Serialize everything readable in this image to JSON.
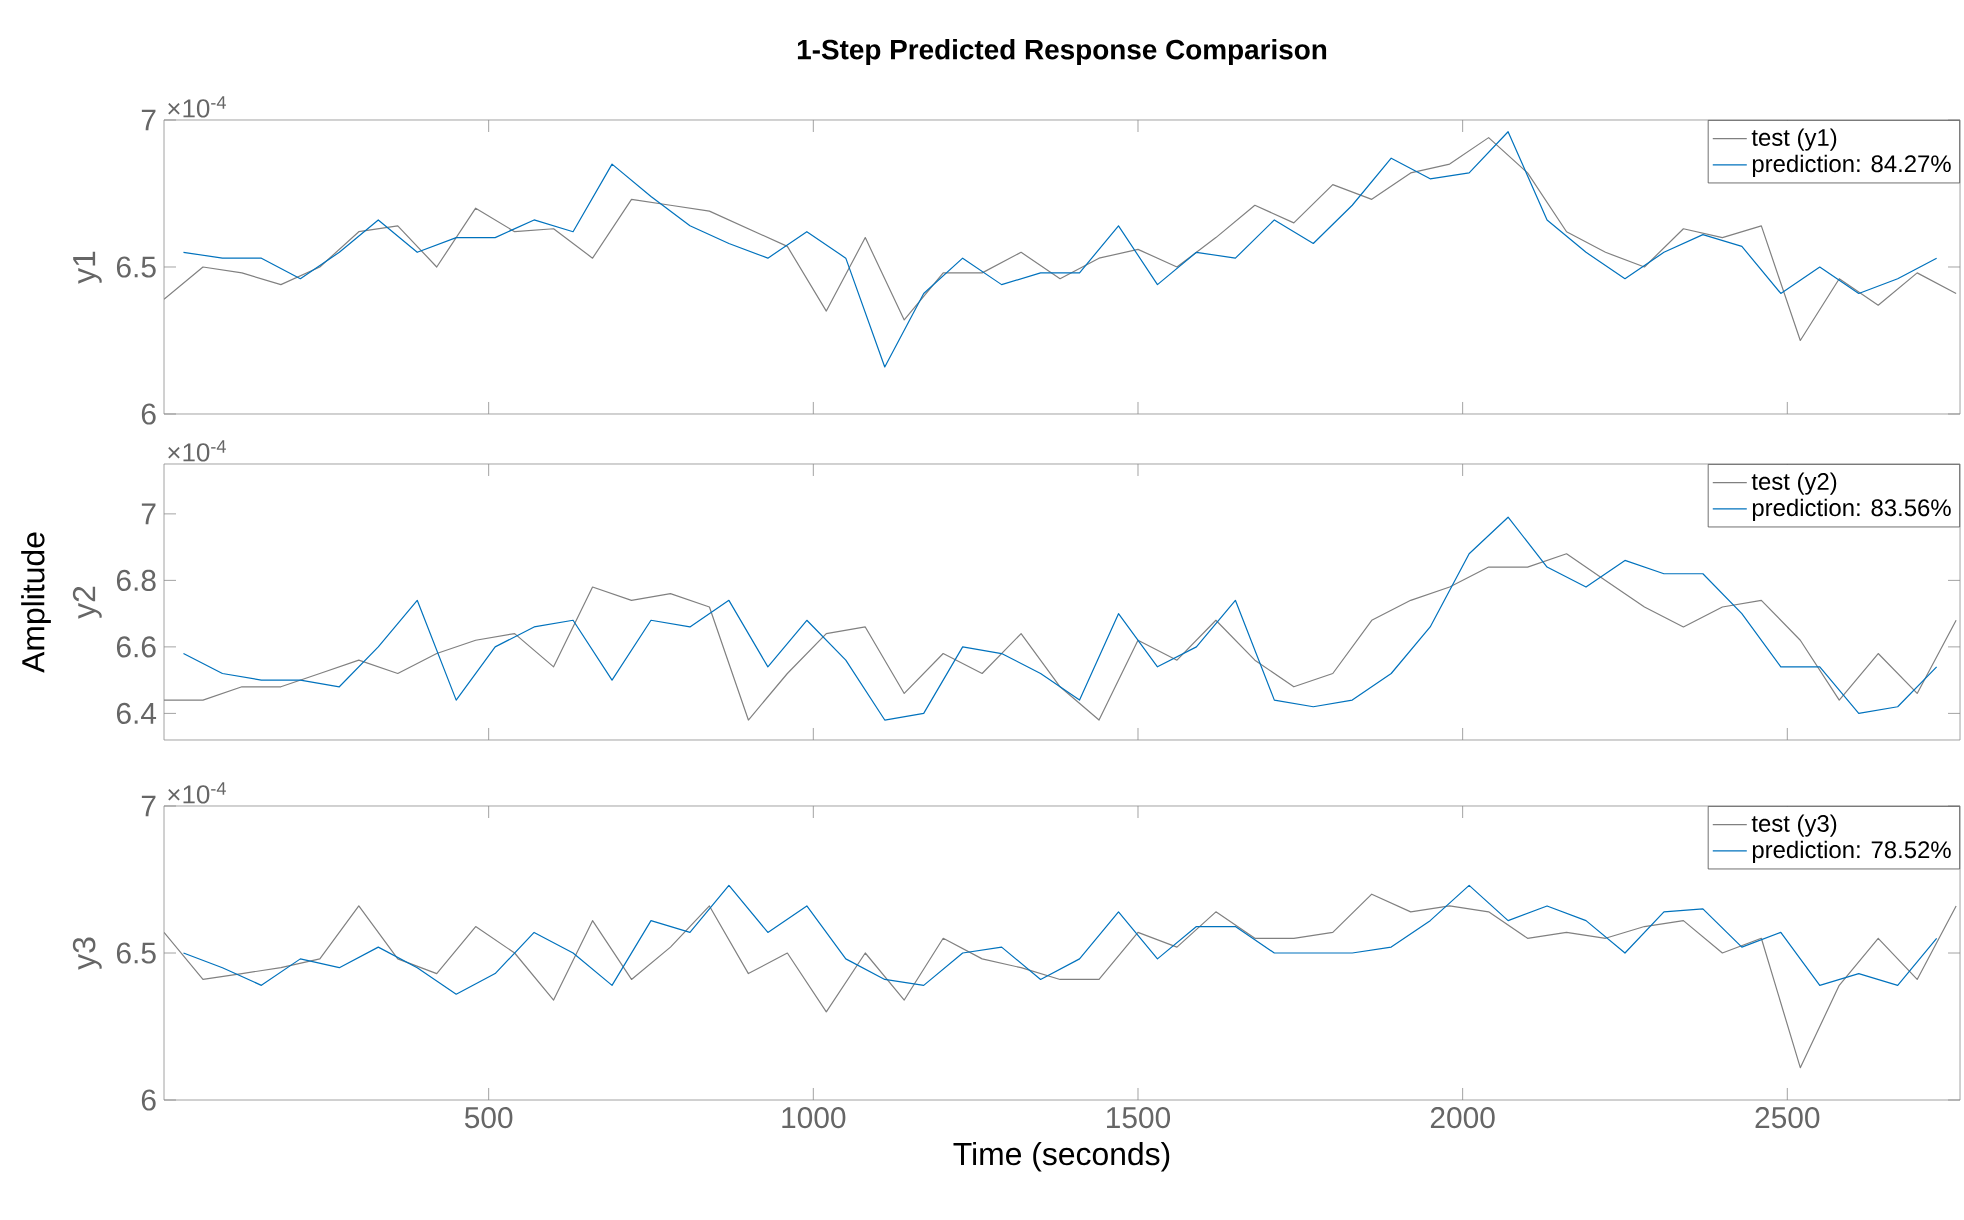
{
  "chart_data": [
    {
      "type": "line",
      "title": "1-Step Predicted Response Comparison",
      "ylabel": "y1",
      "annotations": [
        "×10$^{-4}$"
      ],
      "xlim": [
        0,
        2766
      ],
      "xticks": [
        500,
        1000,
        1500,
        2000,
        2500
      ],
      "ylim": [
        6,
        7
      ],
      "yticks": [
        6,
        6.5,
        7
      ],
      "tick_labels": "y",
      "legend": "top right",
      "marker": "none",
      "line_style": "solid",
      "series": [
        {
          "name": "test (y1)",
          "color": "#808080",
          "x": [
            0,
            60,
            120,
            180,
            240,
            300,
            360,
            420,
            480,
            540,
            600,
            660,
            720,
            780,
            840,
            900,
            960,
            1020,
            1080,
            1140,
            1200,
            1260,
            1320,
            1380,
            1440,
            1500,
            1560,
            1620,
            1680,
            1740,
            1800,
            1860,
            1920,
            1980,
            2040,
            2100,
            2160,
            2220,
            2280,
            2340,
            2400,
            2460,
            2520,
            2580,
            2640,
            2700,
            2760
          ],
          "values": [
            6.39,
            6.5,
            6.48,
            6.44,
            6.5,
            6.62,
            6.64,
            6.5,
            6.7,
            6.62,
            6.63,
            6.53,
            6.73,
            6.71,
            6.69,
            6.63,
            6.57,
            6.35,
            6.6,
            6.32,
            6.48,
            6.48,
            6.55,
            6.46,
            6.53,
            6.56,
            6.5,
            6.6,
            6.71,
            6.65,
            6.78,
            6.73,
            6.82,
            6.85,
            6.94,
            6.82,
            6.62,
            6.55,
            6.5,
            6.63,
            6.6,
            6.64,
            6.25,
            6.46,
            6.37,
            6.48,
            6.41
          ]
        },
        {
          "name": "prediction: 84.27%",
          "color": "#0072bd",
          "x": [
            30,
            90,
            150,
            210,
            270,
            330,
            390,
            450,
            510,
            570,
            630,
            690,
            750,
            810,
            870,
            930,
            990,
            1050,
            1110,
            1170,
            1230,
            1290,
            1350,
            1410,
            1470,
            1530,
            1590,
            1650,
            1710,
            1770,
            1830,
            1890,
            1950,
            2010,
            2070,
            2130,
            2190,
            2250,
            2310,
            2370,
            2430,
            2490,
            2550,
            2610,
            2670,
            2730
          ],
          "values": [
            6.55,
            6.53,
            6.53,
            6.46,
            6.55,
            6.66,
            6.55,
            6.6,
            6.6,
            6.66,
            6.62,
            6.85,
            6.74,
            6.64,
            6.58,
            6.53,
            6.62,
            6.53,
            6.16,
            6.41,
            6.53,
            6.44,
            6.48,
            6.48,
            6.64,
            6.44,
            6.55,
            6.53,
            6.66,
            6.58,
            6.71,
            6.87,
            6.8,
            6.82,
            6.96,
            6.66,
            6.55,
            6.46,
            6.55,
            6.61,
            6.57,
            6.41,
            6.5,
            6.41,
            6.46,
            6.53
          ]
        }
      ]
    },
    {
      "type": "line",
      "ylabel": "y2",
      "annotations": [
        "×10$^{-4}$",
        "Amplitude"
      ],
      "xlim": [
        0,
        2766
      ],
      "xticks": [
        500,
        1000,
        1500,
        2000,
        2500
      ],
      "ylim": [
        6.32,
        7.15
      ],
      "yticks": [
        6.4,
        6.6,
        6.8,
        7
      ],
      "tick_labels": "y",
      "legend": "top right",
      "marker": "none",
      "line_style": "solid",
      "series": [
        {
          "name": "test (y2)",
          "color": "#808080",
          "x": [
            0,
            60,
            120,
            180,
            240,
            300,
            360,
            420,
            480,
            540,
            600,
            660,
            720,
            780,
            840,
            900,
            960,
            1020,
            1080,
            1140,
            1200,
            1260,
            1320,
            1380,
            1440,
            1500,
            1560,
            1620,
            1680,
            1740,
            1800,
            1860,
            1920,
            1980,
            2040,
            2100,
            2160,
            2220,
            2280,
            2340,
            2400,
            2460,
            2520,
            2580,
            2640,
            2700,
            2760
          ],
          "values": [
            6.44,
            6.44,
            6.48,
            6.48,
            6.52,
            6.56,
            6.52,
            6.58,
            6.62,
            6.64,
            6.54,
            6.78,
            6.74,
            6.76,
            6.72,
            6.38,
            6.52,
            6.64,
            6.66,
            6.46,
            6.58,
            6.52,
            6.64,
            6.48,
            6.38,
            6.62,
            6.56,
            6.68,
            6.56,
            6.48,
            6.52,
            6.68,
            6.74,
            6.78,
            6.84,
            6.84,
            6.88,
            6.8,
            6.72,
            6.66,
            6.72,
            6.74,
            6.62,
            6.44,
            6.58,
            6.46,
            6.68
          ]
        },
        {
          "name": "prediction: 83.56%",
          "color": "#0072bd",
          "x": [
            30,
            90,
            150,
            210,
            270,
            330,
            390,
            450,
            510,
            570,
            630,
            690,
            750,
            810,
            870,
            930,
            990,
            1050,
            1110,
            1170,
            1230,
            1290,
            1350,
            1410,
            1470,
            1530,
            1590,
            1650,
            1710,
            1770,
            1830,
            1890,
            1950,
            2010,
            2070,
            2130,
            2190,
            2250,
            2310,
            2370,
            2430,
            2490,
            2550,
            2610,
            2670,
            2730
          ],
          "values": [
            6.58,
            6.52,
            6.5,
            6.5,
            6.48,
            6.6,
            6.74,
            6.44,
            6.6,
            6.66,
            6.68,
            6.5,
            6.68,
            6.66,
            6.74,
            6.54,
            6.68,
            6.56,
            6.38,
            6.4,
            6.6,
            6.58,
            6.52,
            6.44,
            6.7,
            6.54,
            6.6,
            6.74,
            6.44,
            6.42,
            6.44,
            6.52,
            6.66,
            6.88,
            6.99,
            6.84,
            6.78,
            6.86,
            6.82,
            6.82,
            6.7,
            6.54,
            6.54,
            6.4,
            6.42,
            6.54
          ]
        }
      ]
    },
    {
      "type": "line",
      "ylabel": "y3",
      "xlabel": "Time (seconds)",
      "annotations": [
        "×10$^{-4}$"
      ],
      "xlim": [
        0,
        2766
      ],
      "xticks": [
        500,
        1000,
        1500,
        2000,
        2500
      ],
      "ylim": [
        6,
        7
      ],
      "yticks": [
        6,
        6.5,
        7
      ],
      "legend": "top right",
      "marker": "none",
      "line_style": "solid",
      "series": [
        {
          "name": "test (y3)",
          "color": "#808080",
          "x": [
            0,
            60,
            120,
            180,
            240,
            300,
            360,
            420,
            480,
            540,
            600,
            660,
            720,
            780,
            840,
            900,
            960,
            1020,
            1080,
            1140,
            1200,
            1260,
            1320,
            1380,
            1440,
            1500,
            1560,
            1620,
            1680,
            1740,
            1800,
            1860,
            1920,
            1980,
            2040,
            2100,
            2160,
            2220,
            2280,
            2340,
            2400,
            2460,
            2520,
            2580,
            2640,
            2700,
            2760
          ],
          "values": [
            6.57,
            6.41,
            6.43,
            6.45,
            6.48,
            6.66,
            6.48,
            6.43,
            6.59,
            6.5,
            6.34,
            6.61,
            6.41,
            6.52,
            6.66,
            6.43,
            6.5,
            6.3,
            6.5,
            6.34,
            6.55,
            6.48,
            6.45,
            6.41,
            6.41,
            6.57,
            6.52,
            6.64,
            6.55,
            6.55,
            6.57,
            6.7,
            6.64,
            6.66,
            6.64,
            6.55,
            6.57,
            6.55,
            6.59,
            6.61,
            6.5,
            6.55,
            6.11,
            6.39,
            6.55,
            6.41,
            6.66
          ]
        },
        {
          "name": "prediction: 78.52%",
          "color": "#0072bd",
          "x": [
            30,
            90,
            150,
            210,
            270,
            330,
            390,
            450,
            510,
            570,
            630,
            690,
            750,
            810,
            870,
            930,
            990,
            1050,
            1110,
            1170,
            1230,
            1290,
            1350,
            1410,
            1470,
            1530,
            1590,
            1650,
            1710,
            1770,
            1830,
            1890,
            1950,
            2010,
            2070,
            2130,
            2190,
            2250,
            2310,
            2370,
            2430,
            2490,
            2550,
            2610,
            2670,
            2730
          ],
          "values": [
            6.5,
            6.45,
            6.39,
            6.48,
            6.45,
            6.52,
            6.45,
            6.36,
            6.43,
            6.57,
            6.5,
            6.39,
            6.61,
            6.57,
            6.73,
            6.57,
            6.66,
            6.48,
            6.41,
            6.39,
            6.5,
            6.52,
            6.41,
            6.48,
            6.64,
            6.48,
            6.59,
            6.59,
            6.5,
            6.5,
            6.5,
            6.52,
            6.61,
            6.73,
            6.61,
            6.66,
            6.61,
            6.5,
            6.64,
            6.65,
            6.52,
            6.57,
            6.39,
            6.43,
            6.39,
            6.55
          ]
        }
      ]
    }
  ]
}
